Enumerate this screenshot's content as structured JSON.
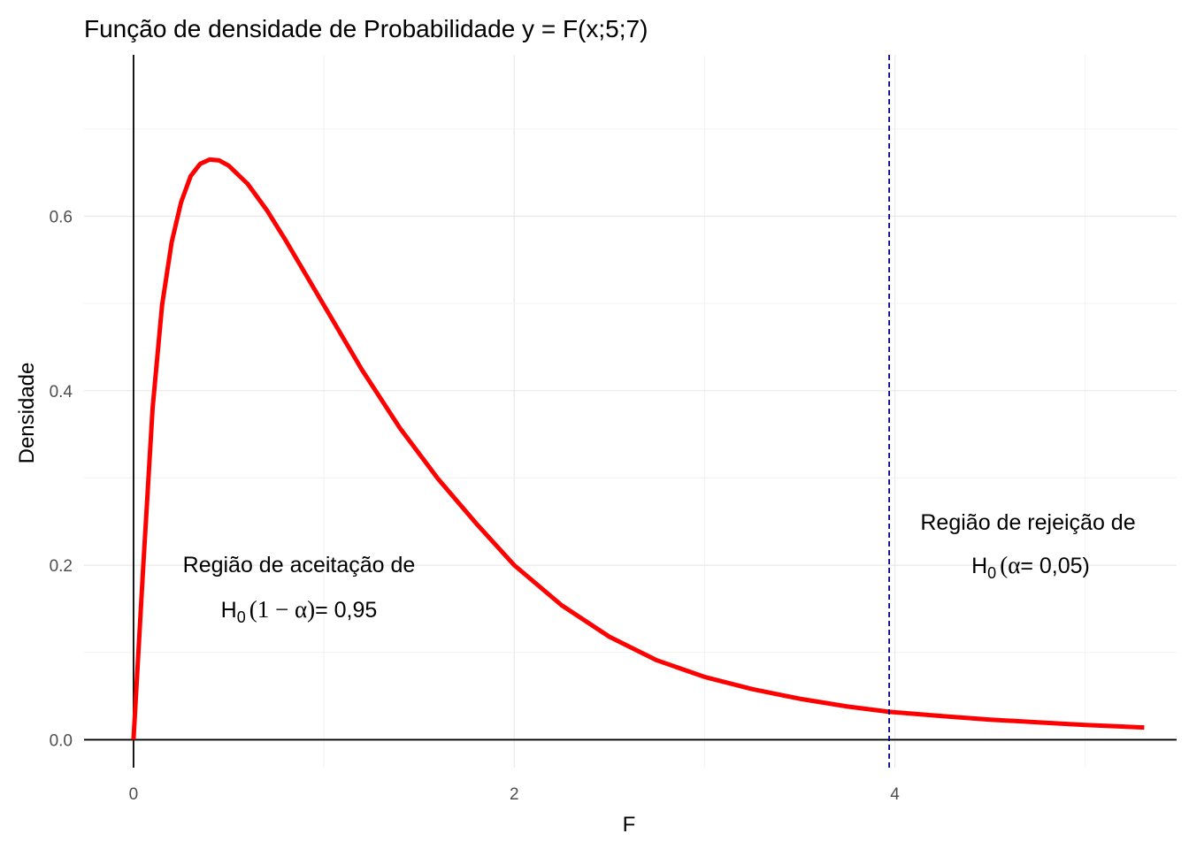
{
  "chart_data": {
    "type": "line",
    "title": "Função de densidade de Probabilidade y = F(x;5;7)",
    "xlabel": "F",
    "ylabel": "Densidade",
    "xlim": [
      -0.26,
      5.48
    ],
    "ylim": [
      -0.032,
      0.785
    ],
    "x_ticks": [
      0,
      2,
      4
    ],
    "x_tick_labels": [
      "0",
      "2",
      "4"
    ],
    "y_ticks": [
      0.0,
      0.2,
      0.4,
      0.6
    ],
    "y_tick_labels": [
      "0.0",
      "0.2",
      "0.4",
      "0.6"
    ],
    "grid": true,
    "series": [
      {
        "color": "#ff0000",
        "x": [
          0.0,
          0.05,
          0.1,
          0.15,
          0.2,
          0.25,
          0.3,
          0.35,
          0.4,
          0.45,
          0.5,
          0.6,
          0.7,
          0.8,
          0.9,
          1.0,
          1.2,
          1.4,
          1.6,
          1.8,
          2.0,
          2.25,
          2.5,
          2.75,
          3.0,
          3.25,
          3.5,
          3.75,
          3.97,
          4.25,
          4.5,
          4.75,
          5.0,
          5.31
        ],
        "y": [
          0.0,
          0.195,
          0.38,
          0.498,
          0.57,
          0.616,
          0.646,
          0.66,
          0.665,
          0.664,
          0.658,
          0.637,
          0.607,
          0.572,
          0.535,
          0.498,
          0.424,
          0.357,
          0.299,
          0.248,
          0.2,
          0.154,
          0.118,
          0.091,
          0.072,
          0.058,
          0.047,
          0.038,
          0.032,
          0.027,
          0.023,
          0.02,
          0.017,
          0.014
        ]
      }
    ],
    "critical_value": 3.97,
    "critical_line_color": "#00008b",
    "annotations": {
      "accept_line1": "Região de aceitação de",
      "accept_h": "H",
      "accept_sub": "0",
      "accept_expr": "(1 − α)",
      "accept_value": "= 0,95",
      "reject_line1": "Região de rejeição de",
      "reject_h": "H",
      "reject_sub": "0",
      "reject_open": "(",
      "reject_alpha": "α",
      "reject_value": "= 0,05)"
    }
  }
}
